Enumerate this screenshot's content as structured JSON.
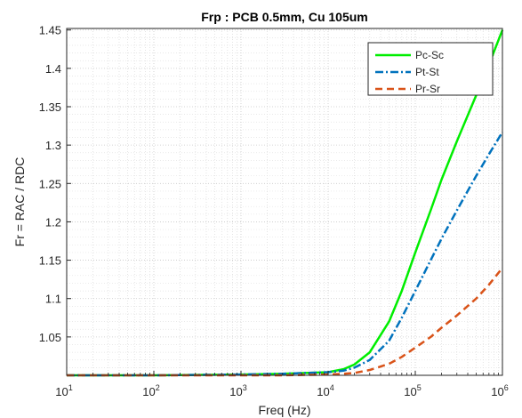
{
  "chart_data": {
    "type": "line",
    "title": "Frp : PCB 0.5mm, Cu 105um",
    "xlabel": "Freq (Hz)",
    "ylabel": "Fr = RAC / RDC",
    "xscale": "log",
    "xlim": [
      10,
      1000000
    ],
    "ylim": [
      1.0,
      1.452
    ],
    "x_ticks": [
      {
        "base": "10",
        "exp": "1"
      },
      {
        "base": "10",
        "exp": "2"
      },
      {
        "base": "10",
        "exp": "3"
      },
      {
        "base": "10",
        "exp": "4"
      },
      {
        "base": "10",
        "exp": "5"
      },
      {
        "base": "10",
        "exp": "6"
      }
    ],
    "y_ticks": [
      1.05,
      1.1,
      1.15,
      1.2,
      1.25,
      1.3,
      1.35,
      1.4,
      1.45
    ],
    "y_tick_labels": [
      "1.05",
      "1.1",
      "1.15",
      "1.2",
      "1.25",
      "1.3",
      "1.35",
      "1.4",
      "1.45"
    ],
    "grid": true,
    "minor_grid": true,
    "legend_position": "top-right",
    "x": [
      10,
      100,
      1000,
      3000,
      10000,
      15000,
      20000,
      30000,
      50000,
      70000,
      100000,
      150000,
      200000,
      300000,
      500000,
      700000,
      1000000
    ],
    "series": [
      {
        "name": "Pc-Sc",
        "color": "#00ee00",
        "style": "solid",
        "values": [
          1.0,
          1.0,
          1.001,
          1.002,
          1.004,
          1.008,
          1.014,
          1.03,
          1.07,
          1.11,
          1.16,
          1.215,
          1.255,
          1.305,
          1.365,
          1.405,
          1.45
        ]
      },
      {
        "name": "Pt-St",
        "color": "#0072bd",
        "style": "dashdot",
        "values": [
          1.0,
          1.0,
          1.001,
          1.002,
          1.004,
          1.006,
          1.01,
          1.02,
          1.045,
          1.075,
          1.11,
          1.15,
          1.178,
          1.215,
          1.26,
          1.288,
          1.317
        ]
      },
      {
        "name": "Pr-Sr",
        "color": "#d95319",
        "style": "dashed",
        "values": [
          1.0,
          1.0,
          1.0,
          1.0,
          1.001,
          1.002,
          1.003,
          1.007,
          1.015,
          1.024,
          1.036,
          1.05,
          1.062,
          1.078,
          1.1,
          1.118,
          1.14
        ]
      }
    ]
  }
}
